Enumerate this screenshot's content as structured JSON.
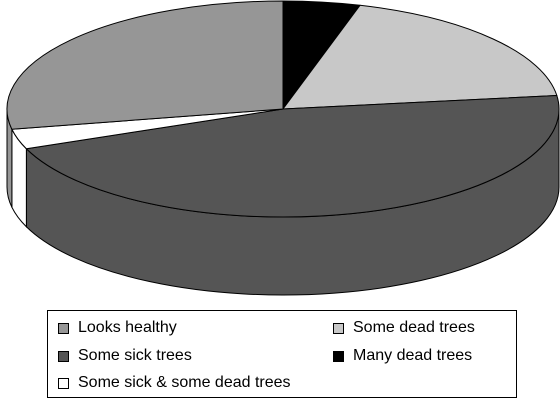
{
  "chart_data": {
    "type": "pie",
    "title": "",
    "three_d": true,
    "legend_position": "bottom",
    "slices": [
      {
        "label": "Many dead trees",
        "value": 4.5,
        "color": "#000000"
      },
      {
        "label": "Some dead trees",
        "value": 18.5,
        "color": "#c8c8c8"
      },
      {
        "label": "Some sick trees",
        "value": 46,
        "color": "#555555"
      },
      {
        "label": "Some sick & some dead trees",
        "value": 3,
        "color": "#ffffff"
      },
      {
        "label": "Looks healthy",
        "value": 28,
        "color": "#969696"
      }
    ]
  },
  "legend": {
    "items": [
      {
        "label": "Looks healthy",
        "color": "#969696"
      },
      {
        "label": "Some dead trees",
        "color": "#c8c8c8"
      },
      {
        "label": "Some sick trees",
        "color": "#555555"
      },
      {
        "label": "Many dead trees",
        "color": "#000000"
      },
      {
        "label": "Some sick & some dead trees",
        "color": "#ffffff"
      }
    ]
  }
}
